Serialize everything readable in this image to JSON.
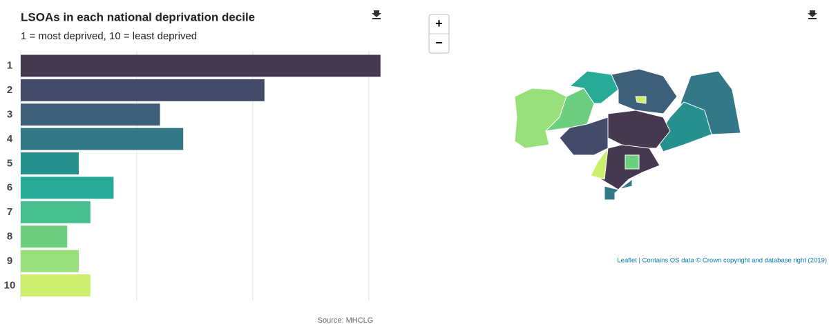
{
  "chart_data": {
    "type": "bar",
    "orientation": "horizontal",
    "title": "LSOAs in each national deprivation decile",
    "subtitle": "1 = most deprived, 10 = least deprived",
    "categories": [
      "1",
      "2",
      "3",
      "4",
      "5",
      "6",
      "7",
      "8",
      "9",
      "10"
    ],
    "values": [
      31,
      21,
      12,
      14,
      5,
      8,
      6,
      4,
      5,
      6
    ],
    "colors": [
      "#45394f",
      "#434b6b",
      "#3c5f7a",
      "#337888",
      "#25908e",
      "#27ab96",
      "#45bf8c",
      "#6ccf80",
      "#9ae07a",
      "#cbef6c"
    ],
    "xlim": [
      0,
      32
    ],
    "xticks": [
      0,
      10,
      20,
      30
    ],
    "grid": true,
    "source": "Source: MHCLG"
  },
  "map": {
    "zoom_in": "+",
    "zoom_out": "−",
    "attribution": "Leaflet | Contains OS data © Crown copyright and database right (2019)"
  }
}
